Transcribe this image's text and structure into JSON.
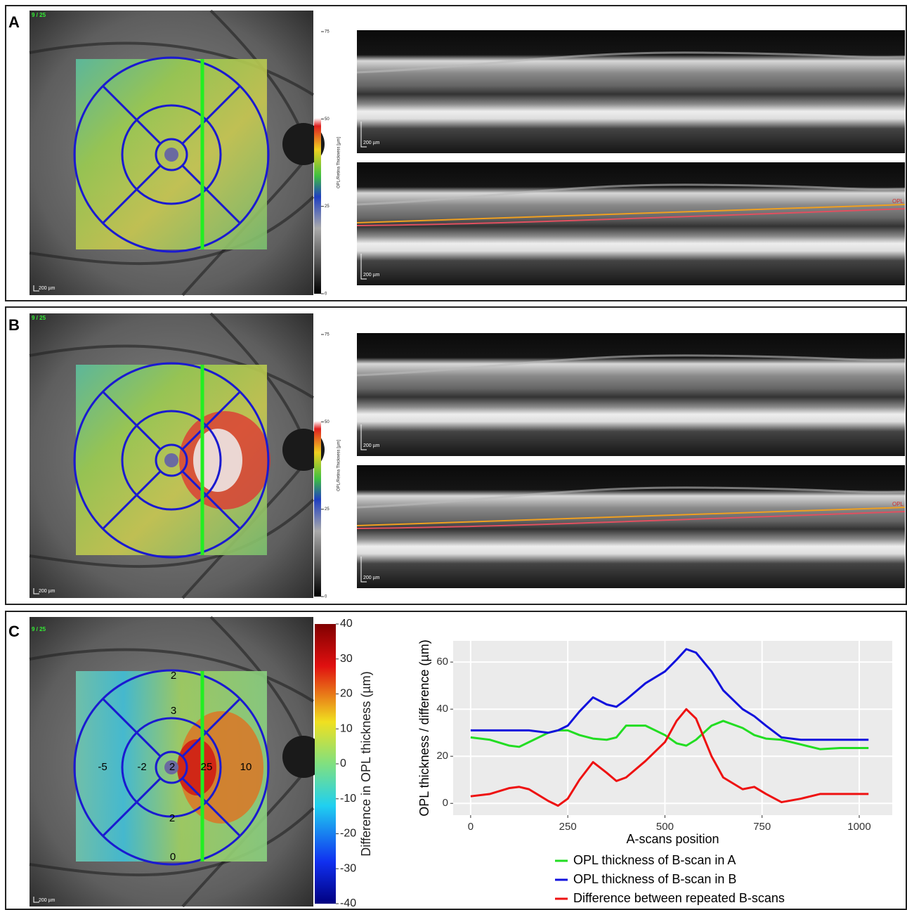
{
  "panels": [
    {
      "label": "A",
      "scan_index": "9 / 25",
      "scale": "200 µm",
      "layer_label": "OPL",
      "colorbar": {
        "title": "OPL/Retina Thickness [µm]",
        "lim": [
          0,
          75
        ],
        "ticks": [
          75,
          50,
          25,
          0
        ]
      }
    },
    {
      "label": "B",
      "scan_index": "9 / 25",
      "scale": "200 µm",
      "layer_label": "OPL",
      "colorbar": {
        "title": "OPL/Retina Thickness [µm]",
        "lim": [
          0,
          75
        ],
        "ticks": [
          75,
          50,
          25,
          0
        ]
      }
    }
  ],
  "panel_c": {
    "label": "C",
    "scan_index": "9 / 25",
    "scale": "200 µm",
    "colorbar": {
      "title": "Difference in OPL thickness (µm)",
      "lim": [
        -40,
        40
      ],
      "ticks": [
        40,
        30,
        20,
        10,
        0,
        -10,
        -20,
        -30,
        -40
      ]
    },
    "sector_values": [
      2,
      3,
      2,
      25,
      10,
      -5,
      -2,
      2,
      0
    ]
  },
  "chart_data": {
    "type": "line",
    "ylabel": "OPL thickness / difference (µm)",
    "xlabel": "A-scans position",
    "x": [
      0,
      50,
      100,
      125,
      150,
      200,
      225,
      250,
      280,
      315,
      350,
      375,
      400,
      450,
      500,
      530,
      555,
      580,
      620,
      650,
      700,
      730,
      760,
      800,
      850,
      900,
      950,
      1024
    ],
    "series": [
      {
        "name": "OPL thickness of B-scan in A",
        "color": "#22dd22",
        "values": [
          28,
          27,
          24.5,
          24,
          26,
          30,
          31,
          31,
          29,
          27.5,
          27,
          28,
          33,
          33,
          29,
          25.5,
          24.5,
          27,
          33,
          35,
          32,
          29,
          27.5,
          27,
          25,
          23,
          23.5,
          23.5
        ]
      },
      {
        "name": "OPL thickness of B-scan in B",
        "color": "#1111dd",
        "values": [
          31,
          31,
          31,
          31,
          31,
          30,
          31,
          33,
          39,
          45,
          42,
          41,
          44,
          51,
          56,
          61,
          65.5,
          64,
          56,
          48,
          40,
          37,
          33,
          28,
          27,
          27,
          27,
          27
        ]
      },
      {
        "name": "Difference between repeated B-scans",
        "color": "#ee1111",
        "values": [
          3,
          4,
          6.5,
          7,
          6,
          1,
          -1,
          2,
          10,
          17.5,
          13,
          9.5,
          11,
          18,
          26,
          35,
          40,
          36,
          20,
          11,
          6,
          7,
          4,
          0.5,
          2,
          4,
          4,
          4
        ]
      }
    ],
    "xlim": [
      -45,
      1085
    ],
    "ylim": [
      -5,
      69
    ],
    "xticks": [
      0,
      250,
      500,
      750,
      1000
    ],
    "yticks": [
      0,
      20,
      40,
      60
    ],
    "grid": true,
    "legend": "bottom"
  }
}
